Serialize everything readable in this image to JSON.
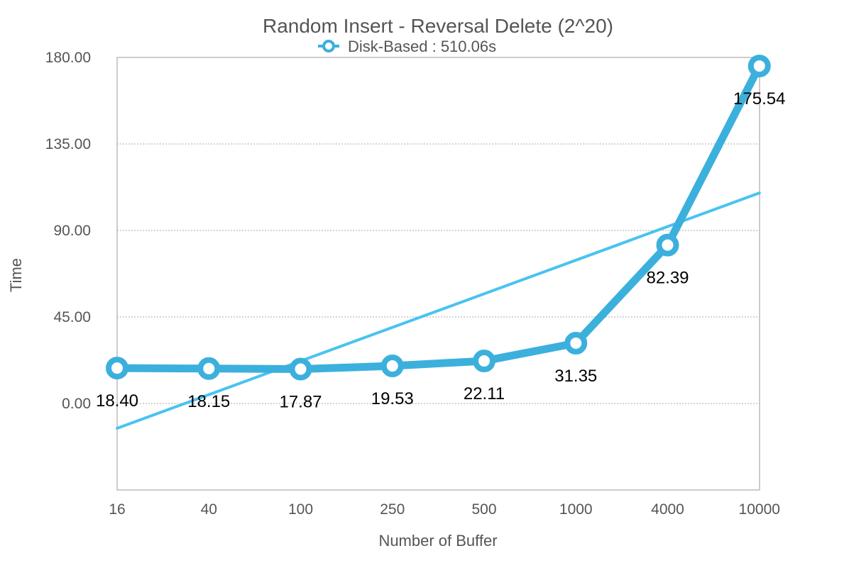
{
  "chart_data": {
    "type": "line",
    "title": "Random Insert - Reversal Delete (2^20)",
    "xlabel": "Number of Buffer",
    "ylabel": "Time",
    "categories": [
      "16",
      "40",
      "100",
      "250",
      "500",
      "1000",
      "4000",
      "10000"
    ],
    "y_ticks": [
      "0.00",
      "45.00",
      "90.00",
      "135.00",
      "180.00"
    ],
    "ylim": [
      -45,
      180
    ],
    "grid": true,
    "legend_position": "top-center",
    "series": [
      {
        "name": "Disk-Based : 510.06s",
        "values": [
          18.4,
          18.15,
          17.87,
          19.53,
          22.11,
          31.35,
          82.39,
          175.54
        ],
        "labels": [
          "18.40",
          "18.15",
          "17.87",
          "19.53",
          "22.11",
          "31.35",
          "82.39",
          "175.54"
        ],
        "color": "#3cb0dd"
      }
    ],
    "trendline": {
      "type": "linear",
      "start_value": -12.9,
      "end_value": 109.5,
      "color": "#49c3f0"
    }
  }
}
